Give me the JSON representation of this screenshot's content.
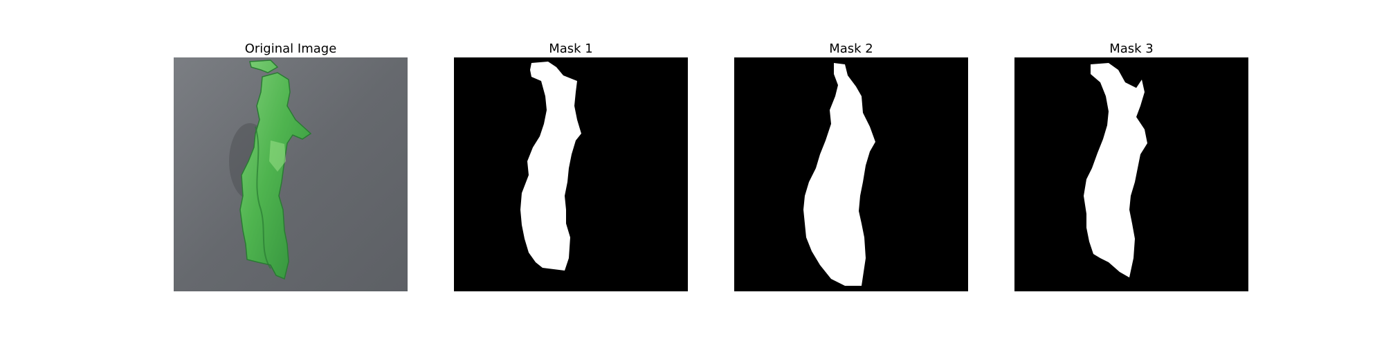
{
  "panels": [
    {
      "title": "Original Image"
    },
    {
      "title": "Mask 1"
    },
    {
      "title": "Mask 2"
    },
    {
      "title": "Mask 3"
    }
  ],
  "colors": {
    "mask_background": "#000000",
    "mask_foreground": "#ffffff",
    "photo_background": "#6b6d72",
    "leaf_dark": "#2f8f3a",
    "leaf_mid": "#45b14f",
    "leaf_light": "#8fd67a"
  }
}
